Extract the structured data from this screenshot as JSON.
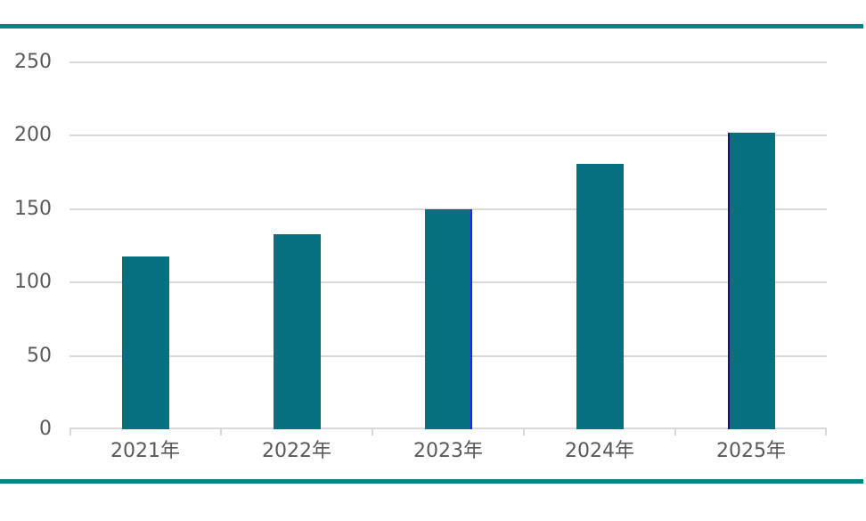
{
  "chart_data": {
    "type": "bar",
    "categories": [
      "2021年",
      "2022年",
      "2023年",
      "2024年",
      "2025年"
    ],
    "values": [
      118,
      133,
      150,
      181,
      202
    ],
    "title": "",
    "xlabel": "",
    "ylabel": "",
    "ylim": [
      0,
      250
    ],
    "y_ticks": [
      0,
      50,
      100,
      150,
      200,
      250
    ],
    "grid": true,
    "legend": false,
    "bar_edge_artifacts": [
      {
        "category_index": 2,
        "side": "right",
        "color": "#2323ff"
      },
      {
        "category_index": 4,
        "side": "left",
        "color": "#16166b"
      }
    ]
  },
  "style": {
    "bar_color": "#067080",
    "rule_color": "#088286",
    "grid_color": "#d9d9d9",
    "axis_label_color": "#595959",
    "background": "#ffffff"
  }
}
